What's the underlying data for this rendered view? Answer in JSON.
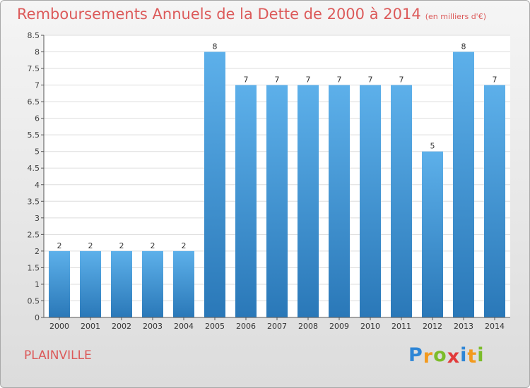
{
  "chart_data": {
    "type": "bar",
    "title": "Remboursements Annuels de la Dette de 2000 à 2014",
    "unit_label": "(en milliers d'€)",
    "categories": [
      "2000",
      "2001",
      "2002",
      "2003",
      "2004",
      "2005",
      "2006",
      "2007",
      "2008",
      "2009",
      "2010",
      "2011",
      "2012",
      "2013",
      "2014"
    ],
    "values": [
      2,
      2,
      2,
      2,
      2,
      8,
      7,
      7,
      7,
      7,
      7,
      7,
      5,
      8,
      7
    ],
    "ylim": [
      0,
      8.5
    ],
    "yticks": [
      "0",
      "0.5",
      "1",
      "1.5",
      "2",
      "2.5",
      "3",
      "3.5",
      "4",
      "4.5",
      "5",
      "5.5",
      "6",
      "6.5",
      "7",
      "7.5",
      "8",
      "8.5"
    ],
    "xlabel": "",
    "ylabel": ""
  },
  "footer": {
    "city": "PLAINVILLE",
    "logo_letters": [
      "P",
      "r",
      "o",
      "x",
      "i",
      "t",
      "i"
    ]
  },
  "colors": {
    "title": "#dc5a5a",
    "bar_top": "#5db0ea",
    "bar_bottom": "#2a78b8",
    "logo": [
      "#2e86d6",
      "#f39a1e",
      "#7cbc2a",
      "#e23b3b",
      "#2e86d6",
      "#f39a1e",
      "#7cbc2a"
    ]
  }
}
